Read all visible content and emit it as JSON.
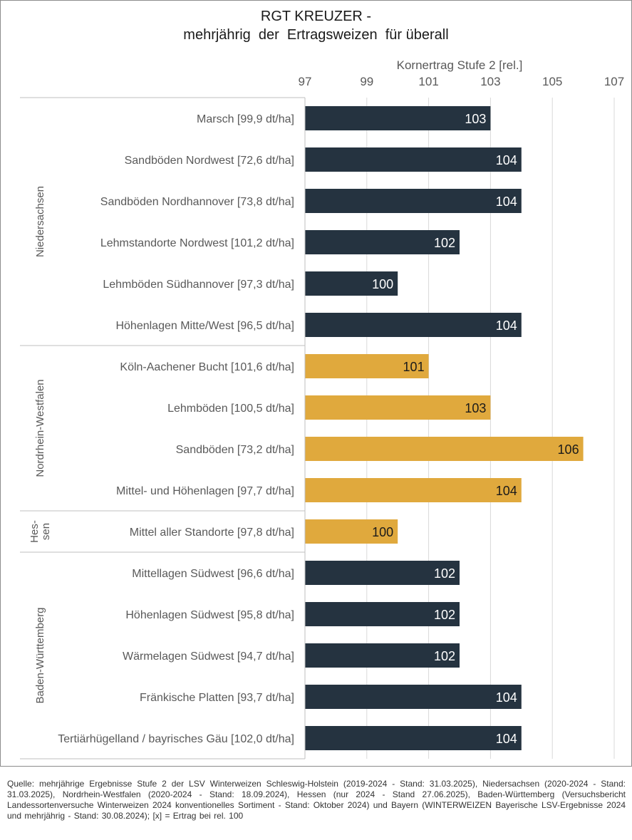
{
  "title_line1": "RGT KREUZER -",
  "title_line2": "mehrjährig  der  Ertragsweizen  für überall",
  "footer": "Quelle: mehrjährige Ergebnisse Stufe 2 der LSV Winterweizen Schleswig-Holstein (2019-2024 - Stand: 31.03.2025), Niedersachsen (2020-2024 - Stand: 31.03.2025), Nordrhein-Westfalen (2020-2024 - Stand: 18.09.2024), Hessen (nur 2024 - Stand 27.06.2025), Baden-Württemberg (Versuchsbericht Landessortenversuche Winterweizen 2024 konventionelles Sortiment - Stand: Oktober 2024) und Bayern (WINTERWEIZEN Bayerische LSV-Ergebnisse 2024 und mehrjährig - Stand: 30.08.2024); [x] = Ertrag bei rel. 100",
  "colors": {
    "dark": "#253340",
    "gold": "#E0A93D",
    "grid": "#d9d9d9",
    "axis_text": "#595959",
    "cat_text": "#595959"
  },
  "chart_data": {
    "type": "bar",
    "orientation": "horizontal",
    "title": "RGT KREUZER - mehrjährig der Ertragsweizen für überall",
    "xlabel": "Kornertrag Stufe 2 [rel.]",
    "xlim": [
      97,
      107
    ],
    "xticks": [
      "97",
      "99",
      "101",
      "103",
      "105",
      "107"
    ],
    "xtick_values": [
      97,
      99,
      101,
      103,
      105,
      107
    ],
    "grid": true,
    "groups": [
      {
        "name": "Niedersachsen",
        "lines": [
          "Niedersachsen"
        ],
        "start": 0,
        "count": 6,
        "color": "dark"
      },
      {
        "name": "Nordrhein-Westfalen",
        "lines": [
          "Nordrhein-Westfalen"
        ],
        "start": 6,
        "count": 4,
        "color": "gold"
      },
      {
        "name": "Hessen",
        "lines": [
          "Hes-",
          "sen"
        ],
        "start": 10,
        "count": 1,
        "color": "gold"
      },
      {
        "name": "Baden-Württemberg",
        "lines": [
          "Baden-Württemberg"
        ],
        "start": 11,
        "count": 5,
        "color": "dark"
      }
    ],
    "categories": [
      "Marsch [99,9 dt/ha]",
      "Sandböden Nordwest [72,6 dt/ha]",
      "Sandböden Nordhannover [73,8 dt/ha]",
      "Lehmstandorte Nordwest [101,2 dt/ha]",
      "Lehmböden Südhannover [97,3 dt/ha]",
      "Höhenlagen Mitte/West [96,5 dt/ha]",
      "Köln-Aachener Bucht [101,6 dt/ha]",
      "Lehmböden [100,5 dt/ha]",
      "Sandböden [73,2 dt/ha]",
      "Mittel- und Höhenlagen [97,7 dt/ha]",
      "Mittel aller Standorte [97,8 dt/ha]",
      "Mittellagen Südwest [96,6 dt/ha]",
      "Höhenlagen Südwest [95,8 dt/ha]",
      "Wärmelagen Südwest [94,7 dt/ha]",
      "Fränkische Platten [93,7 dt/ha]",
      "Tertiärhügelland / bayrisches Gäu [102,0 dt/ha]"
    ],
    "values": [
      103,
      104,
      104,
      102,
      100,
      104,
      101,
      103,
      106,
      104,
      100,
      102,
      102,
      102,
      104,
      104
    ],
    "value_labels": [
      "103",
      "104",
      "104",
      "102",
      "100",
      "104",
      "101",
      "103",
      "106",
      "104",
      "100",
      "102",
      "102",
      "102",
      "104",
      "104"
    ]
  }
}
